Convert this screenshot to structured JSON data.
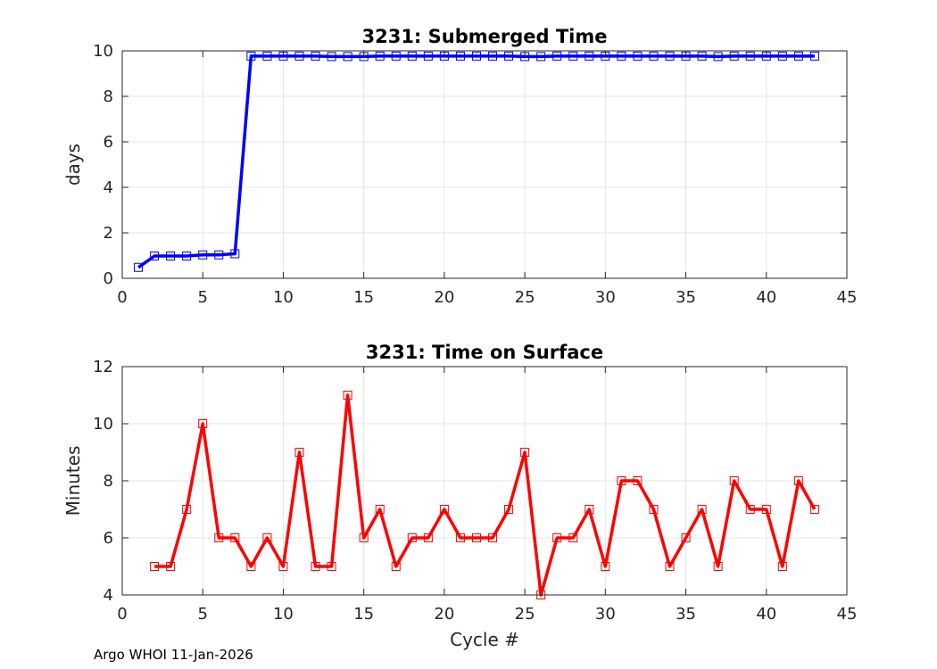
{
  "footer": "Argo WHOI 11-Jan-2026",
  "chart_data": [
    {
      "type": "line",
      "title": "3231: Submerged Time",
      "xlabel": "",
      "ylabel": "days",
      "xlim": [
        0,
        45
      ],
      "ylim": [
        0,
        10
      ],
      "xticks": [
        0,
        5,
        10,
        15,
        20,
        25,
        30,
        35,
        40,
        45
      ],
      "yticks": [
        0,
        2,
        4,
        6,
        8,
        10
      ],
      "grid": true,
      "color": "#0000ff",
      "marker": "square",
      "series": [
        {
          "x": [
            1,
            2,
            3,
            4,
            5,
            6,
            7,
            8,
            9,
            10,
            11,
            12,
            13,
            14,
            15,
            16,
            17,
            18,
            19,
            20,
            21,
            22,
            23,
            24,
            25,
            26,
            27,
            28,
            29,
            30,
            31,
            32,
            33,
            34,
            35,
            36,
            37,
            38,
            39,
            40,
            41,
            42,
            43
          ],
          "values": [
            0.48,
            0.98,
            0.98,
            0.98,
            1.03,
            1.03,
            1.08,
            9.77,
            9.77,
            9.77,
            9.77,
            9.77,
            9.75,
            9.75,
            9.75,
            9.77,
            9.77,
            9.77,
            9.77,
            9.77,
            9.77,
            9.77,
            9.77,
            9.77,
            9.75,
            9.75,
            9.77,
            9.77,
            9.77,
            9.77,
            9.77,
            9.77,
            9.77,
            9.77,
            9.77,
            9.77,
            9.75,
            9.77,
            9.77,
            9.77,
            9.77,
            9.77,
            9.77
          ]
        }
      ]
    },
    {
      "type": "line",
      "title": "3231: Time on Surface",
      "xlabel": "Cycle #",
      "ylabel": "Minutes",
      "xlim": [
        0,
        45
      ],
      "ylim": [
        4,
        12
      ],
      "xticks": [
        0,
        5,
        10,
        15,
        20,
        25,
        30,
        35,
        40,
        45
      ],
      "yticks": [
        4,
        6,
        8,
        10,
        12
      ],
      "grid": true,
      "color": "#ff0000",
      "marker": "square",
      "series": [
        {
          "x": [
            2,
            3,
            4,
            5,
            6,
            7,
            8,
            9,
            10,
            11,
            12,
            13,
            14,
            15,
            16,
            17,
            18,
            19,
            20,
            21,
            22,
            23,
            24,
            25,
            26,
            27,
            28,
            29,
            30,
            31,
            32,
            33,
            34,
            35,
            36,
            37,
            38,
            39,
            40,
            41,
            42,
            43
          ],
          "values": [
            5,
            5,
            7,
            10,
            6,
            6,
            5,
            6,
            5,
            9,
            5,
            5,
            11,
            6,
            7,
            5,
            6,
            6,
            7,
            6,
            6,
            6,
            7,
            9,
            4,
            6,
            6,
            7,
            5,
            8,
            8,
            7,
            5,
            6,
            7,
            5,
            8,
            7,
            7,
            5,
            8,
            7
          ]
        }
      ]
    }
  ]
}
